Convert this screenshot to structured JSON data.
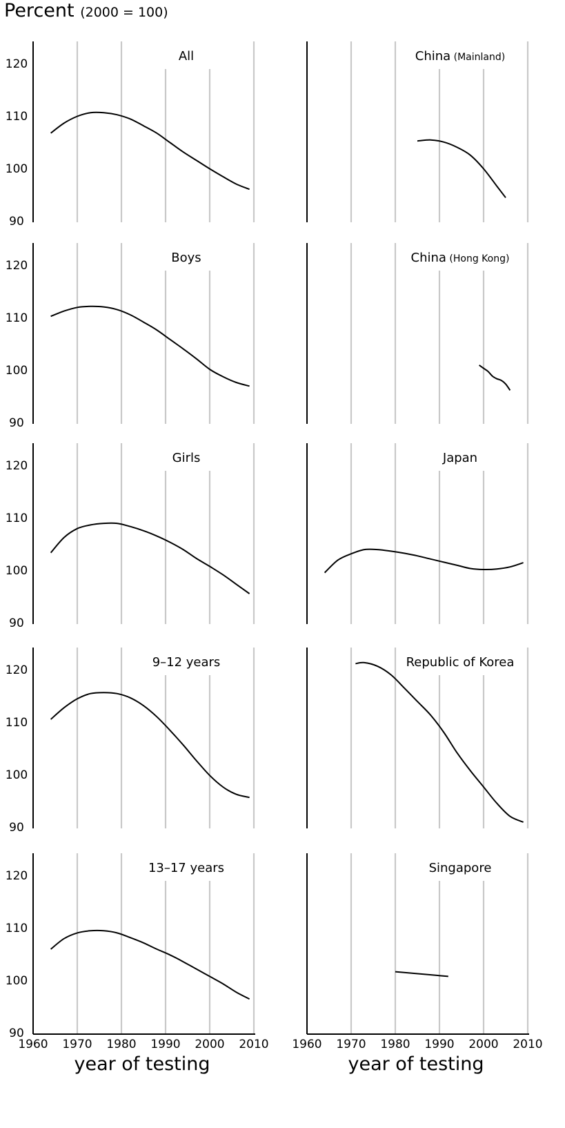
{
  "header": {
    "title": "Percent",
    "subtitle": "(2000 = 100)"
  },
  "x_axis_label": "year of testing",
  "chart_data": [
    {
      "type": "line",
      "title": "All",
      "title_sub": "",
      "x": [
        1964,
        1967,
        1970,
        1973,
        1976,
        1979,
        1982,
        1985,
        1988,
        1991,
        1994,
        1997,
        2000,
        2003,
        2006,
        2009
      ],
      "y": [
        106.6,
        108.5,
        109.8,
        110.5,
        110.5,
        110.1,
        109.3,
        108.0,
        106.6,
        104.8,
        103.0,
        101.4,
        99.8,
        98.3,
        96.9,
        95.9
      ],
      "xlim": [
        1960,
        2010
      ],
      "ylim": [
        90,
        124
      ],
      "yticks": [
        90,
        100,
        110,
        120
      ],
      "xticks": [
        1960,
        1970,
        1980,
        1990,
        2000,
        2010
      ]
    },
    {
      "type": "line",
      "title": "China",
      "title_sub": "(Mainland)",
      "x": [
        1985,
        1988,
        1991,
        1994,
        1997,
        2000,
        2003,
        2005
      ],
      "y": [
        105.1,
        105.3,
        104.9,
        103.9,
        102.4,
        99.8,
        96.5,
        94.3
      ],
      "xlim": [
        1960,
        2010
      ],
      "ylim": [
        90,
        124
      ],
      "yticks": [
        90,
        100,
        110,
        120
      ],
      "xticks": [
        1960,
        1970,
        1980,
        1990,
        2000,
        2010
      ]
    },
    {
      "type": "line",
      "title": "Boys",
      "title_sub": "",
      "x": [
        1964,
        1967,
        1970,
        1973,
        1976,
        1979,
        1982,
        1985,
        1988,
        1991,
        1994,
        1997,
        2000,
        2003,
        2006,
        2009
      ],
      "y": [
        110.1,
        111.1,
        111.8,
        112.0,
        111.9,
        111.4,
        110.4,
        109.0,
        107.5,
        105.7,
        103.9,
        102.0,
        100.0,
        98.6,
        97.5,
        96.8
      ],
      "xlim": [
        1960,
        2010
      ],
      "ylim": [
        90,
        124
      ],
      "yticks": [
        90,
        100,
        110,
        120
      ],
      "xticks": [
        1960,
        1970,
        1980,
        1990,
        2000,
        2010
      ]
    },
    {
      "type": "line",
      "title": "China",
      "title_sub": "(Hong Kong)",
      "x": [
        1999,
        2000,
        2001,
        2002,
        2003,
        2004,
        2005,
        2006
      ],
      "y": [
        100.8,
        100.2,
        99.6,
        98.7,
        98.2,
        97.9,
        97.2,
        96.0
      ],
      "xlim": [
        1960,
        2010
      ],
      "ylim": [
        90,
        124
      ],
      "yticks": [
        90,
        100,
        110,
        120
      ],
      "xticks": [
        1960,
        1970,
        1980,
        1990,
        2000,
        2010
      ]
    },
    {
      "type": "line",
      "title": "Girls",
      "title_sub": "",
      "x": [
        1964,
        1967,
        1970,
        1973,
        1976,
        1979,
        1982,
        1985,
        1988,
        1991,
        1994,
        1997,
        2000,
        2003,
        2006,
        2009
      ],
      "y": [
        103.2,
        106.1,
        107.8,
        108.5,
        108.8,
        108.8,
        108.2,
        107.4,
        106.4,
        105.2,
        103.8,
        102.1,
        100.6,
        99.0,
        97.2,
        95.4
      ],
      "xlim": [
        1960,
        2010
      ],
      "ylim": [
        90,
        124
      ],
      "yticks": [
        90,
        100,
        110,
        120
      ],
      "xticks": [
        1960,
        1970,
        1980,
        1990,
        2000,
        2010
      ]
    },
    {
      "type": "line",
      "title": "Japan",
      "title_sub": "",
      "x": [
        1964,
        1967,
        1970,
        1973,
        1976,
        1979,
        1982,
        1985,
        1988,
        1991,
        1994,
        1997,
        2000,
        2003,
        2006,
        2009
      ],
      "y": [
        99.4,
        101.8,
        103.0,
        103.8,
        103.8,
        103.5,
        103.1,
        102.6,
        102.0,
        101.4,
        100.8,
        100.2,
        100.0,
        100.1,
        100.5,
        101.3
      ],
      "xlim": [
        1960,
        2010
      ],
      "ylim": [
        90,
        124
      ],
      "yticks": [
        90,
        100,
        110,
        120
      ],
      "xticks": [
        1960,
        1970,
        1980,
        1990,
        2000,
        2010
      ]
    },
    {
      "type": "line",
      "title": "9–12 years",
      "title_sub": "",
      "x": [
        1964,
        1967,
        1970,
        1973,
        1976,
        1979,
        1982,
        1985,
        1988,
        1991,
        1994,
        1997,
        2000,
        2003,
        2006,
        2009
      ],
      "y": [
        110.4,
        112.6,
        114.3,
        115.3,
        115.5,
        115.3,
        114.5,
        113.0,
        110.9,
        108.3,
        105.5,
        102.5,
        99.7,
        97.5,
        96.1,
        95.5
      ],
      "xlim": [
        1960,
        2010
      ],
      "ylim": [
        90,
        124
      ],
      "yticks": [
        90,
        100,
        110,
        120
      ],
      "xticks": [
        1960,
        1970,
        1980,
        1990,
        2000,
        2010
      ]
    },
    {
      "type": "line",
      "title": "Republic of Korea",
      "title_sub": "",
      "x": [
        1971,
        1973,
        1976,
        1979,
        1982,
        1985,
        1988,
        1991,
        1994,
        1997,
        2000,
        2003,
        2006,
        2009
      ],
      "y": [
        121.0,
        121.2,
        120.5,
        118.9,
        116.4,
        113.8,
        111.2,
        107.9,
        104.0,
        100.6,
        97.5,
        94.4,
        91.9,
        90.8
      ],
      "xlim": [
        1960,
        2010
      ],
      "ylim": [
        90,
        124
      ],
      "yticks": [
        90,
        100,
        110,
        120
      ],
      "xticks": [
        1960,
        1970,
        1980,
        1990,
        2000,
        2010
      ]
    },
    {
      "type": "line",
      "title": "13–17 years",
      "title_sub": "",
      "x": [
        1964,
        1967,
        1970,
        1973,
        1976,
        1979,
        1982,
        1985,
        1988,
        1991,
        1994,
        1997,
        2000,
        2003,
        2006,
        2009
      ],
      "y": [
        105.8,
        107.8,
        108.9,
        109.3,
        109.3,
        108.9,
        108.0,
        107.0,
        105.8,
        104.7,
        103.4,
        102.0,
        100.6,
        99.2,
        97.6,
        96.3
      ],
      "xlim": [
        1960,
        2010
      ],
      "ylim": [
        90,
        124
      ],
      "yticks": [
        90,
        100,
        110,
        120
      ],
      "xticks": [
        1960,
        1970,
        1980,
        1990,
        2000,
        2010
      ]
    },
    {
      "type": "line",
      "title": "Singapore",
      "title_sub": "",
      "x": [
        1980,
        1992
      ],
      "y": [
        101.5,
        100.6
      ],
      "xlim": [
        1960,
        2010
      ],
      "ylim": [
        90,
        124
      ],
      "yticks": [
        90,
        100,
        110,
        120
      ],
      "xticks": [
        1960,
        1970,
        1980,
        1990,
        2000,
        2010
      ]
    }
  ]
}
